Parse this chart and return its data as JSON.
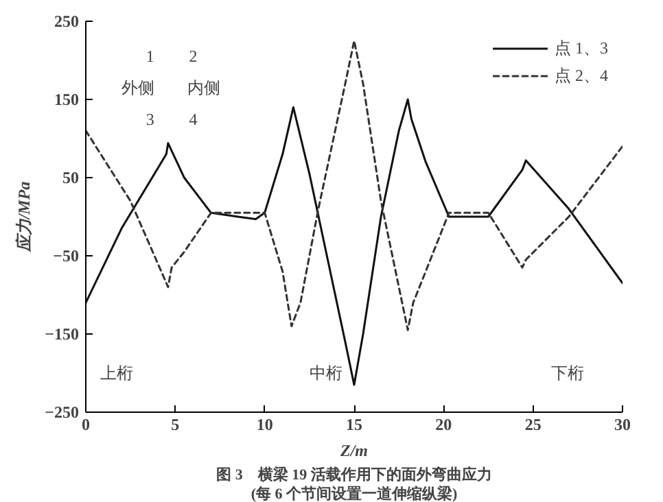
{
  "chart_data": {
    "type": "line",
    "xlabel": "Z/m",
    "ylabel": "应力/MPa",
    "xlim": [
      0,
      30
    ],
    "ylim": [
      -250,
      250
    ],
    "xticks": [
      0,
      5,
      10,
      15,
      20,
      25,
      30
    ],
    "yticks": [
      -250,
      -150,
      -50,
      50,
      150,
      250
    ],
    "grid": false,
    "legend": "top right",
    "marker": "none",
    "series": [
      {
        "name": "点 1、3",
        "color": "#111111",
        "line_style": "solid",
        "x": [
          0,
          2,
          4.5,
          4.6,
          5.5,
          7,
          8.5,
          9.5,
          10,
          11,
          11.6,
          12.5,
          14.5,
          15,
          15.5,
          16.5,
          17.5,
          18,
          18.2,
          19,
          20.3,
          22.5,
          24.4,
          24.6,
          27,
          30
        ],
        "values": [
          -110,
          -15,
          80,
          94,
          50,
          5,
          0,
          -3,
          5,
          80,
          140,
          55,
          -160,
          -215,
          -150,
          0,
          110,
          150,
          125,
          70,
          0,
          0,
          60,
          72,
          10,
          -85
        ]
      },
      {
        "name": "点 2、4",
        "color": "#333333",
        "line_style": "dashed",
        "x": [
          0,
          2.5,
          4.6,
          4.8,
          5.5,
          7,
          10,
          11,
          11.5,
          12,
          13,
          14.5,
          15,
          15.5,
          16.5,
          17.5,
          18,
          18.3,
          19,
          20.3,
          22.5,
          24.4,
          24.6,
          27,
          30
        ],
        "values": [
          110,
          20,
          -90,
          -65,
          -45,
          5,
          5,
          -70,
          -140,
          -110,
          10,
          170,
          225,
          170,
          20,
          -90,
          -145,
          -110,
          -70,
          5,
          5,
          -65,
          -55,
          0,
          90
        ]
      }
    ],
    "annotations": [
      "1",
      "2",
      "外侧",
      "内侧",
      "3",
      "4",
      "上桁",
      "中桁",
      "下桁",
      "图 3　横梁 19 活载作用下的面外弯曲应力",
      "(每 6 个节间设置一道伸缩纵梁)"
    ]
  }
}
